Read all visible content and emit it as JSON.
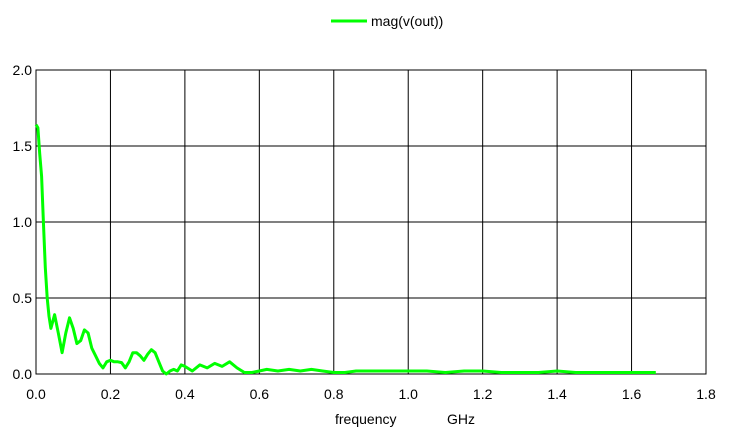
{
  "chart_data": {
    "type": "line",
    "title": "",
    "xlabel": "frequency",
    "xunit": "GHz",
    "ylabel": "",
    "xlim": [
      0,
      1.8
    ],
    "ylim": [
      0,
      2.0
    ],
    "grid": true,
    "legend_position": "top-center",
    "x_ticks": [
      "0.0",
      "0.2",
      "0.4",
      "0.6",
      "0.8",
      "1.0",
      "1.2",
      "1.4",
      "1.6",
      "1.8"
    ],
    "y_ticks": [
      "0.0",
      "0.5",
      "1.0",
      "1.5",
      "2.0"
    ],
    "series": [
      {
        "name": "mag(v(out))",
        "color": "#00ff00",
        "x": [
          0.0,
          0.005,
          0.01,
          0.015,
          0.02,
          0.025,
          0.03,
          0.035,
          0.04,
          0.05,
          0.06,
          0.07,
          0.08,
          0.09,
          0.1,
          0.11,
          0.12,
          0.13,
          0.14,
          0.15,
          0.16,
          0.17,
          0.18,
          0.19,
          0.2,
          0.21,
          0.22,
          0.23,
          0.24,
          0.25,
          0.26,
          0.27,
          0.28,
          0.29,
          0.3,
          0.31,
          0.32,
          0.33,
          0.34,
          0.35,
          0.36,
          0.37,
          0.38,
          0.39,
          0.4,
          0.42,
          0.44,
          0.46,
          0.48,
          0.5,
          0.52,
          0.54,
          0.56,
          0.58,
          0.6,
          0.62,
          0.65,
          0.68,
          0.71,
          0.74,
          0.77,
          0.8,
          0.83,
          0.86,
          0.9,
          0.95,
          1.0,
          1.05,
          1.1,
          1.15,
          1.2,
          1.25,
          1.3,
          1.35,
          1.4,
          1.45,
          1.5,
          1.55,
          1.6,
          1.665
        ],
        "values": [
          1.64,
          1.62,
          1.45,
          1.3,
          1.0,
          0.7,
          0.5,
          0.38,
          0.3,
          0.39,
          0.27,
          0.14,
          0.27,
          0.37,
          0.3,
          0.2,
          0.22,
          0.29,
          0.27,
          0.17,
          0.12,
          0.07,
          0.04,
          0.08,
          0.09,
          0.08,
          0.08,
          0.075,
          0.04,
          0.08,
          0.14,
          0.14,
          0.12,
          0.09,
          0.13,
          0.16,
          0.14,
          0.08,
          0.02,
          0.0,
          0.02,
          0.03,
          0.02,
          0.06,
          0.05,
          0.02,
          0.06,
          0.04,
          0.07,
          0.05,
          0.08,
          0.04,
          0.01,
          0.01,
          0.02,
          0.03,
          0.02,
          0.03,
          0.02,
          0.03,
          0.02,
          0.01,
          0.01,
          0.02,
          0.02,
          0.02,
          0.02,
          0.02,
          0.01,
          0.02,
          0.02,
          0.01,
          0.01,
          0.01,
          0.02,
          0.01,
          0.01,
          0.01,
          0.01,
          0.01
        ]
      }
    ]
  }
}
